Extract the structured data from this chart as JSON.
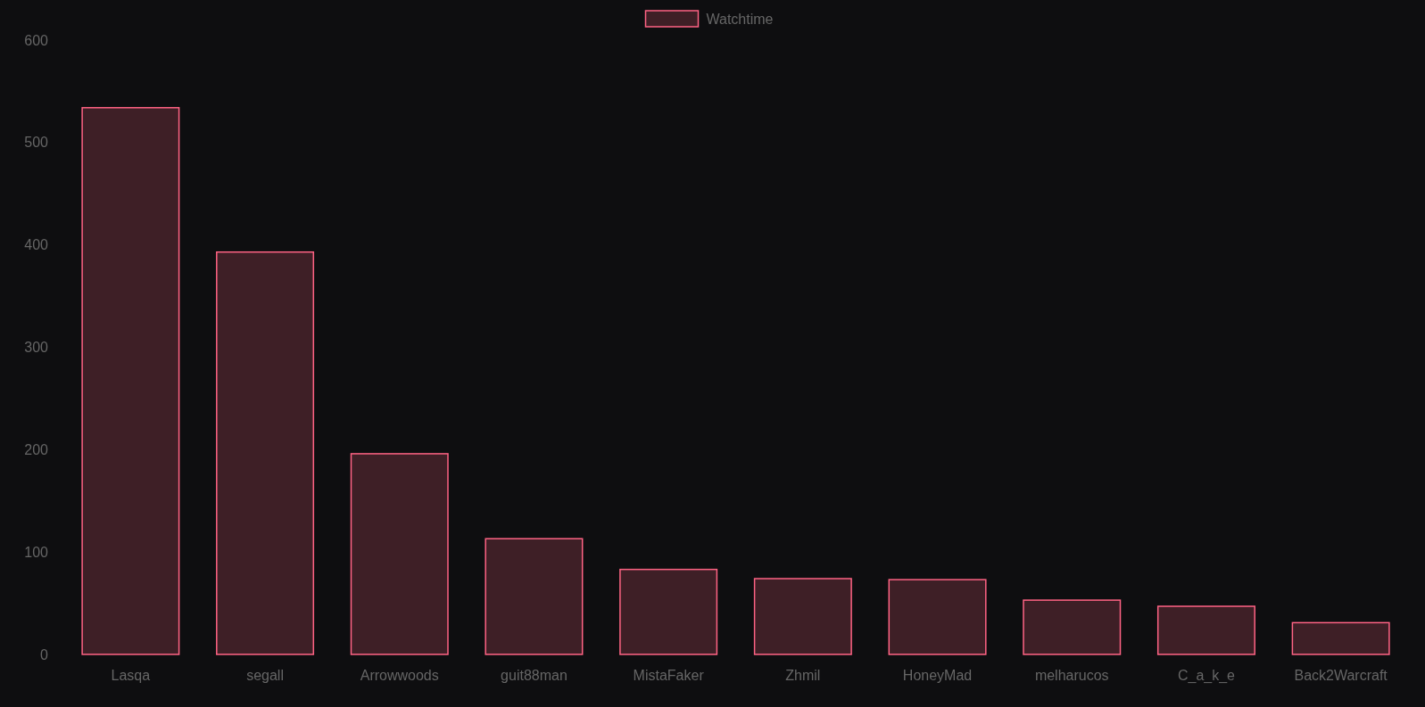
{
  "chart_data": {
    "type": "bar",
    "categories": [
      "Lasqa",
      "segall",
      "Arrowwoods",
      "guit88man",
      "MistaFaker",
      "Zhmil",
      "HoneyMad",
      "melharucos",
      "C_a_k_e",
      "Back2Warcraft"
    ],
    "series": [
      {
        "name": "Watchtime",
        "color": "#ff6384",
        "values": [
          534,
          393,
          196,
          113,
          83,
          74,
          73,
          53,
          47,
          31
        ]
      }
    ],
    "ylim": [
      0,
      600
    ],
    "yticks": [
      0,
      100,
      200,
      300,
      400,
      500,
      600
    ],
    "grid": false,
    "legend": "top"
  }
}
